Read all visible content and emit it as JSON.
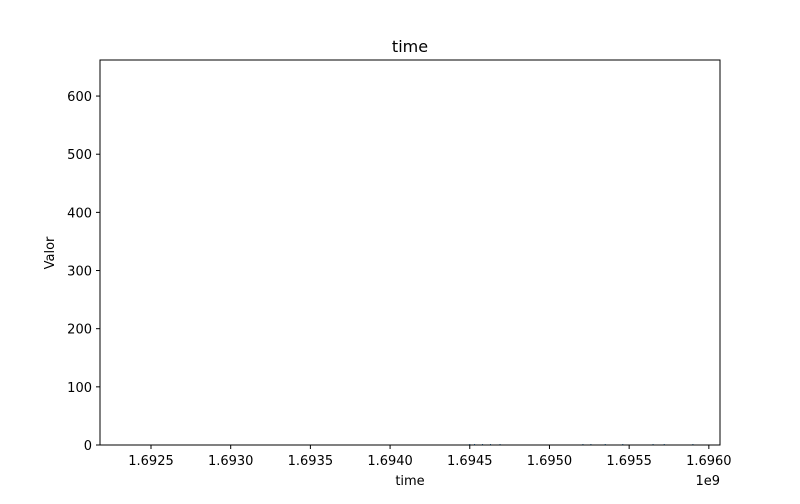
{
  "chart_data": {
    "type": "bar",
    "title": "time",
    "xlabel": "time",
    "ylabel": "Valor",
    "x_offset_label": "1e9",
    "xlim": [
      1.69218,
      1.69607
    ],
    "ylim": [
      0,
      662
    ],
    "grid": false,
    "x_ticks": [
      1.6925,
      1.693,
      1.6935,
      1.694,
      1.6945,
      1.695,
      1.6955,
      1.696
    ],
    "x_tick_labels": [
      "1.6925",
      "1.6930",
      "1.6935",
      "1.6940",
      "1.6945",
      "1.6950",
      "1.6955",
      "1.6960"
    ],
    "y_ticks": [
      0,
      100,
      200,
      300,
      400,
      500,
      600
    ],
    "y_tick_labels": [
      "0",
      "100",
      "200",
      "300",
      "400",
      "500",
      "600"
    ],
    "series": [
      {
        "color": "#1f77b4",
        "x": [
          1.6945,
          1.69453,
          1.69458,
          1.69463,
          1.69469,
          1.69521,
          1.69526,
          1.69535,
          1.69546,
          1.69565,
          1.69572,
          1.6959
        ],
        "values": [
          0.8,
          0.9,
          1.1,
          0.9,
          0.8,
          0.8,
          0.9,
          0.8,
          0.7,
          0.9,
          0.8,
          1.0
        ]
      }
    ]
  }
}
